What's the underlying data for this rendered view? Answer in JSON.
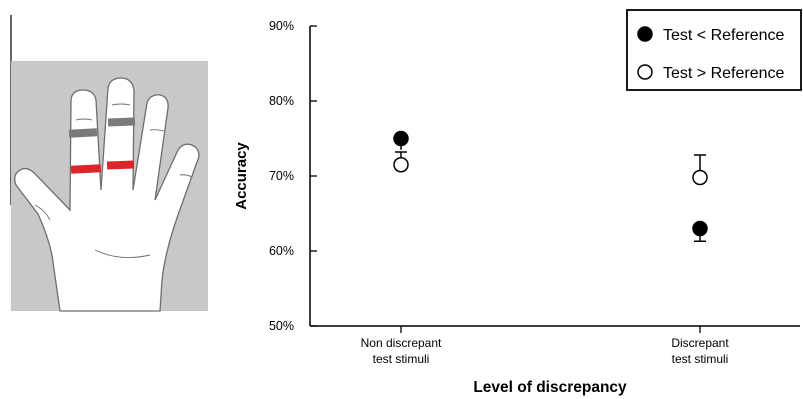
{
  "colors": {
    "panel_bg": "#c8c8c8",
    "ring_proximal": "#d9262b",
    "ring_distal": "#7a7a7a",
    "hand_fill": "#ffffff",
    "hand_outline": "#6e6e6e"
  },
  "chart_data": {
    "type": "scatter",
    "title": "",
    "xlabel": "Level of discrepancy",
    "ylabel": "Accuracy",
    "categories": [
      "Non discrepant\ntest stimuli",
      "Discrepant\ntest stimuli"
    ],
    "ylim": [
      50,
      90
    ],
    "yticks": [
      50,
      60,
      70,
      80,
      90
    ],
    "ytick_labels": [
      "50%",
      "60%",
      "70%",
      "80%",
      "90%"
    ],
    "grid": false,
    "legend_position": "top-right",
    "series": [
      {
        "name": "Test < Reference",
        "marker": "filled-circle",
        "values": [
          75.0,
          63.0
        ],
        "error_low": [
          73.5,
          61.3
        ],
        "error_high": [
          75.5,
          63.0
        ]
      },
      {
        "name": "Test > Reference",
        "marker": "open-circle",
        "values": [
          71.5,
          69.8
        ],
        "error_low": [
          71.5,
          69.8
        ],
        "error_high": [
          73.2,
          72.8
        ]
      }
    ]
  }
}
